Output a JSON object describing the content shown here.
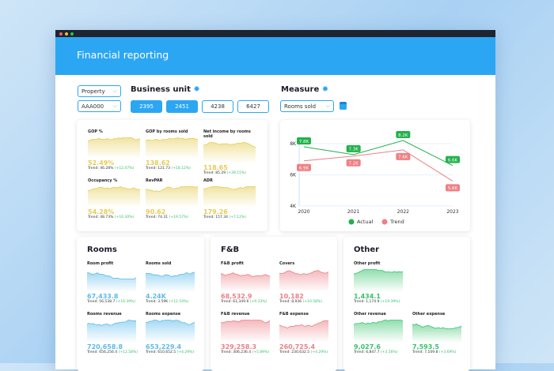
{
  "window": {
    "title": "Financial reporting"
  },
  "filters": {
    "property_label": "Property",
    "property_value": "AAA000",
    "business_unit_label": "Business unit",
    "business_units": [
      {
        "label": "2395",
        "selected": true
      },
      {
        "label": "2451",
        "selected": true
      },
      {
        "label": "4238",
        "selected": false
      },
      {
        "label": "6427",
        "selected": false
      }
    ],
    "measure_label": "Measure",
    "measure_value": "Rooms sold"
  },
  "colors": {
    "accent": "#2ba6f3",
    "kpi": "#e6cc55",
    "rooms": "#5bbbea",
    "fnb": "#ec7f86",
    "other": "#36c26a",
    "actual": "#22b14c",
    "trend": "#ef7f84"
  },
  "kpis": [
    {
      "title": "GOP %",
      "value": "52.49%",
      "trend": "Trend: 46.28%",
      "delta": "(+12.47%)"
    },
    {
      "title": "GOP by rooms sold",
      "value": "138.62",
      "trend": "Trend: 121.73",
      "delta": "(+18.12%)"
    },
    {
      "title": "Net income by rooms sold",
      "value": "118.65",
      "trend": "Trend: 85.29",
      "delta": "(+39.15%)"
    },
    {
      "title": "Occupancy %",
      "value": "54.28%",
      "trend": "Trend: 48.73%",
      "delta": "(+10.30%)"
    },
    {
      "title": "RevPAR",
      "value": "90.62",
      "trend": "Trend: 74.31",
      "delta": "(+19.57%)"
    },
    {
      "title": "ADR",
      "value": "179.26",
      "trend": "Trend: 157.34",
      "delta": "(+7.12%)"
    }
  ],
  "rooms": {
    "title": "Rooms",
    "items": [
      {
        "title": "Room profit",
        "value": "67,433.8",
        "trend": "Trend: 56,538.7",
        "delta": "(+16.39%)"
      },
      {
        "title": "Rooms sold",
        "value": "4.24K",
        "trend": "Trend: 3.59K",
        "delta": "(+12.54%)"
      },
      {
        "title": "Rooms revenue",
        "value": "720,658.8",
        "trend": "Trend: 656,256.4",
        "delta": "(+12.58%)"
      },
      {
        "title": "Rooms expense",
        "value": "653,229.4",
        "trend": "Trend: 610,652.5",
        "delta": "(+4.29%)"
      }
    ]
  },
  "fnb": {
    "title": "F&B",
    "items": [
      {
        "title": "F&B profit",
        "value": "68,532.9",
        "trend": "Trend: 61,349.6",
        "delta": "(+9.33%)"
      },
      {
        "title": "Covers",
        "value": "10,182",
        "trend": "Trend: 8,936",
        "delta": "(+10.58%)"
      },
      {
        "title": "F&B revenue",
        "value": "329,258.3",
        "trend": "Trend: 306,236.4",
        "delta": "(+5.89%)"
      },
      {
        "title": "F&B expense",
        "value": "260,725.4",
        "trend": "Trend: 230,632.5",
        "delta": "(+4.29%)"
      }
    ]
  },
  "other": {
    "title": "Other",
    "items": [
      {
        "title": "Other profit",
        "value": "1,434.1",
        "trend": "Trend: 1,174.9",
        "delta": "(+19.39%)"
      },
      {
        "title": "Other revenue",
        "value": "9,027.6",
        "trend": "Trend: 6,847.7",
        "delta": "(+3.56%)"
      },
      {
        "title": "Other expense",
        "value": "7,593.5",
        "trend": "Trend: 7,109.8",
        "delta": "(+3.69%)"
      }
    ]
  },
  "chart_data": {
    "type": "line",
    "x": [
      "2020",
      "2021",
      "2022",
      "2023"
    ],
    "yticks": [
      "4K",
      "6K",
      "8K"
    ],
    "ylim": [
      4000,
      8500
    ],
    "grid": true,
    "legend": "bottom",
    "series": [
      {
        "name": "Actual",
        "values": [
          7800,
          7300,
          8200,
          6600
        ],
        "labels": [
          "7.8K",
          "7.3K",
          "8.2K",
          "6.6K"
        ],
        "color": "#22b14c"
      },
      {
        "name": "Trend",
        "values": [
          6900,
          7200,
          7600,
          5600
        ],
        "labels": [
          "6.9K",
          "7.2K",
          "7.6K",
          "5.6K"
        ],
        "color": "#ef7f84"
      }
    ]
  }
}
